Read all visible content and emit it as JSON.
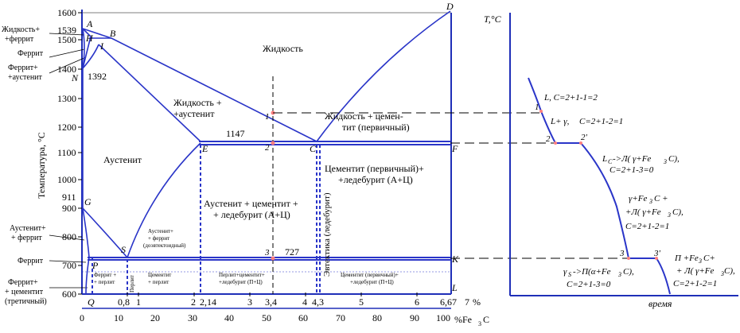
{
  "colors": {
    "line": "#2a35c8",
    "point": "#ff8080",
    "text": "#000000"
  },
  "axis": {
    "y_title": "Температура, °С",
    "y_ticks": [
      "1600",
      "1500",
      "1400",
      "1300",
      "1200",
      "1100",
      "1000",
      "900",
      "800",
      "700",
      "600"
    ],
    "y_special": [
      "1539",
      "1392",
      "911"
    ],
    "x_top": [
      "Q",
      "0,8",
      "1",
      "2",
      "2,14",
      "3",
      "3,4",
      "4",
      "4,3",
      "5",
      "6",
      "6,67",
      "7",
      "%"
    ],
    "x_bottom": [
      "0",
      "10",
      "20",
      "30",
      "40",
      "50",
      "60",
      "70",
      "80",
      "90",
      "100"
    ],
    "x_bottom_unit": "%Fe",
    "x_bottom_sub": "3",
    "x_bottom_tail": "C"
  },
  "side_labels": {
    "l1": "Жидкость+",
    "l2": "+феррит",
    "l3": "Феррит",
    "l4": "Феррит+",
    "l5": "+аустенит",
    "l6": "Аустенит+",
    "l7": "+ феррит",
    "l8": "Феррит",
    "l9": "Феррит+",
    "l10": "+ цементит",
    "l11": "(третичный)"
  },
  "points": {
    "A": "A",
    "B": "B",
    "H": "H",
    "I": "I",
    "N": "N",
    "D": "D",
    "E": "E",
    "C": "C",
    "F": "F",
    "G": "G",
    "S": "S",
    "P": "P",
    "K": "K",
    "L": "L",
    "Q": "Q"
  },
  "regions": {
    "liquid": "Жидкость",
    "liq_aus1": "Жидкость +",
    "liq_aus2": "+аустенит",
    "liq_cem1": "Жидкость + цемен-",
    "liq_cem2": "тит (первичный)",
    "austenite": "Аустенит",
    "cem_led1": "Цементит (первичный)+",
    "cem_led2": "+ледебурит (А+Ц)",
    "aus_cem1": "Аустенит + цементит +",
    "aus_cem2": "+ ледебурит (А+Ц)",
    "eutectic": "Эвтектика (ледебурит)",
    "aus_fer1": "Аустенит+",
    "aus_fer2": "+ феррит",
    "aus_fer3": "(доэвтектоидный)",
    "fer_per1": "Феррит +",
    "fer_per2": "+ перлит",
    "pearlite": "Перлит",
    "cem_per1": "Цементит",
    "cem_per2": "+ перлит",
    "per_cem1": "Перлит+цементит+",
    "per_cem2": "+ледебурит (П+Ц)",
    "cem_led_low1": "Цементит (первичный)+",
    "cem_led_low2": "+ледебурит (П+Ц)",
    "t1147": "1147",
    "t727": "727",
    "n1": "1",
    "n2": "2",
    "n2p": "2'",
    "n3": "3"
  },
  "cooling": {
    "axis_title": "T,°C",
    "time_label": "время",
    "eq1a": "L, C=2+1-1=2",
    "n1": "1",
    "eq2a": "L+ γ,",
    "eq2b": "C=2+1-2=1",
    "n2": "2",
    "n2p": "2'",
    "eq3a": "L",
    "eq3b": "C",
    "eq3c": "->Л( γ+Fe",
    "eq3d": "3",
    "eq3e": "C),",
    "eq3f": "C=2+1-3=0",
    "eq4a": "γ+Fe",
    "eq4b": "3",
    "eq4c": "C +",
    "eq4d": "+Л( γ+Fe",
    "eq4e": "3",
    "eq4f": "C),",
    "eq4g": "C=2+1-2=1",
    "n3": "3",
    "n3p": "3'",
    "eq5a": "γ",
    "eq5b": "S",
    "eq5c": "->П(α+Fe",
    "eq5d": "3",
    "eq5e": "C),",
    "eq5f": "C=2+1-3=0",
    "eq6a": "П +Fe",
    "eq6b": "3",
    "eq6c": "C+",
    "eq6d": "+ Л( γ+Fe",
    "eq6e": "3",
    "eq6f": "C),",
    "eq6g": "C=2+1-2=1"
  }
}
